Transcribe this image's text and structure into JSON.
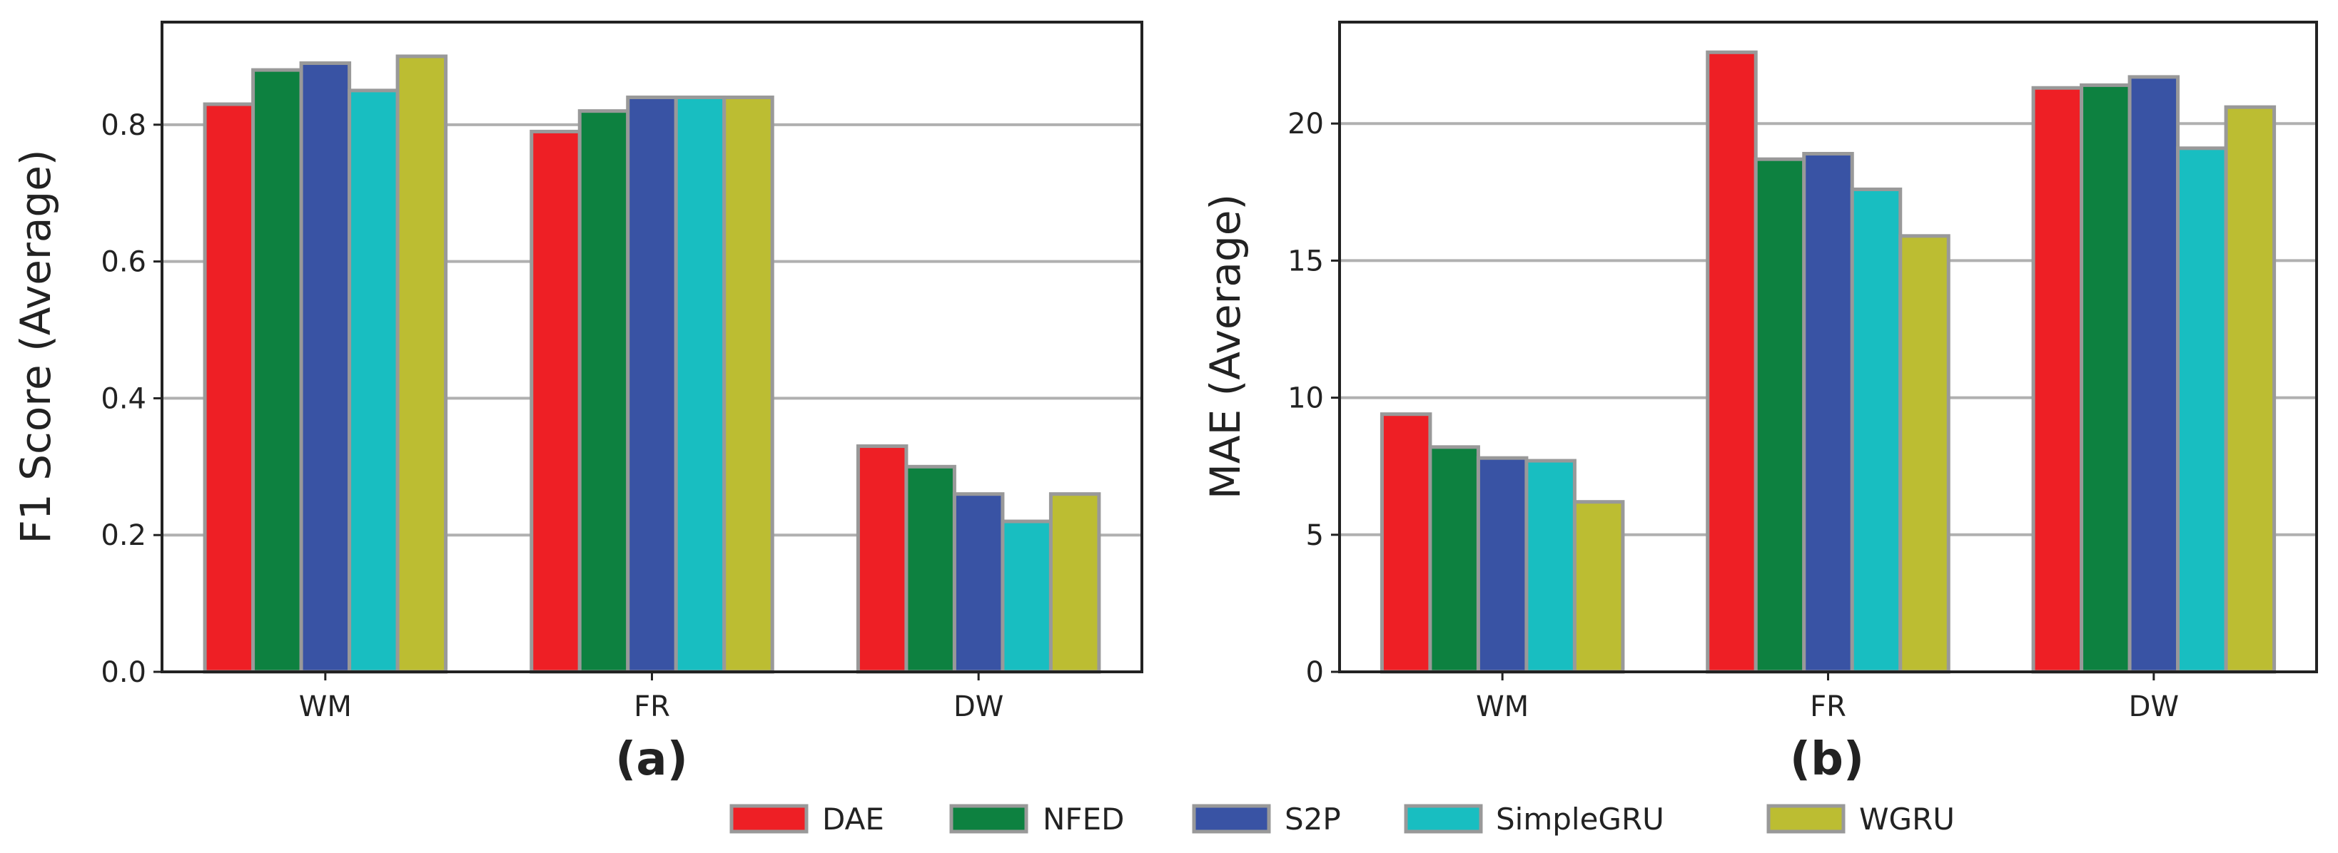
{
  "series_meta": [
    {
      "name": "DAE",
      "color": "#ee1f25"
    },
    {
      "name": "NFED",
      "color": "#0d8140"
    },
    {
      "name": "S2P",
      "color": "#3953a4"
    },
    {
      "name": "SimpleGRU",
      "color": "#18bec1"
    },
    {
      "name": "WGRU",
      "color": "#bcbd32"
    }
  ],
  "bar_edge_color": "#999999",
  "chart_data": [
    {
      "type": "bar",
      "panel_label": "(a)",
      "categories": [
        "WM",
        "FR",
        "DW"
      ],
      "series": [
        {
          "name": "DAE",
          "values": [
            0.83,
            0.79,
            0.33
          ]
        },
        {
          "name": "NFED",
          "values": [
            0.88,
            0.82,
            0.3
          ]
        },
        {
          "name": "S2P",
          "values": [
            0.89,
            0.84,
            0.26
          ]
        },
        {
          "name": "SimpleGRU",
          "values": [
            0.85,
            0.84,
            0.22
          ]
        },
        {
          "name": "WGRU",
          "values": [
            0.9,
            0.84,
            0.26
          ]
        }
      ],
      "xlabel": "",
      "ylabel": "F1 Score (Average)",
      "ylim": [
        0,
        0.95
      ],
      "yticks": [
        0.0,
        0.2,
        0.4,
        0.6,
        0.8
      ],
      "ytick_labels": [
        "0.0",
        "0.2",
        "0.4",
        "0.6",
        "0.8"
      ],
      "grid": "y"
    },
    {
      "type": "bar",
      "panel_label": "(b)",
      "categories": [
        "WM",
        "FR",
        "DW"
      ],
      "series": [
        {
          "name": "DAE",
          "values": [
            9.4,
            22.6,
            21.3
          ]
        },
        {
          "name": "NFED",
          "values": [
            8.2,
            18.7,
            21.4
          ]
        },
        {
          "name": "S2P",
          "values": [
            7.8,
            18.9,
            21.7
          ]
        },
        {
          "name": "SimpleGRU",
          "values": [
            7.7,
            17.6,
            19.1
          ]
        },
        {
          "name": "WGRU",
          "values": [
            6.2,
            15.9,
            20.6
          ]
        }
      ],
      "xlabel": "",
      "ylabel": "MAE (Average)",
      "ylim": [
        0,
        23.7
      ],
      "yticks": [
        0,
        5,
        10,
        15,
        20
      ],
      "ytick_labels": [
        "0",
        "5",
        "10",
        "15",
        "20"
      ],
      "grid": "y"
    }
  ],
  "legend": {
    "position": "bottom-center",
    "entries": [
      "DAE",
      "NFED",
      "S2P",
      "SimpleGRU",
      "WGRU"
    ]
  }
}
